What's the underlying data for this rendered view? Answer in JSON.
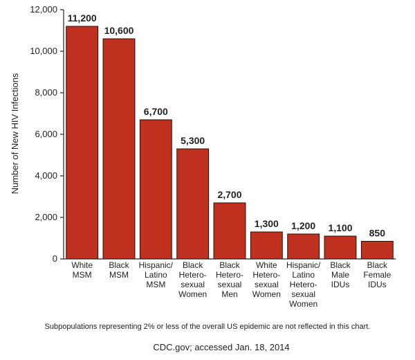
{
  "chart_data": {
    "type": "bar",
    "ylabel": "Number of New HIV Infections",
    "ylim": [
      0,
      12000
    ],
    "yticks": [
      0,
      2000,
      4000,
      6000,
      8000,
      10000,
      12000
    ],
    "ytick_labels": [
      "0",
      "2,000",
      "4,000",
      "6,000",
      "8,000",
      "10,000",
      "12,000"
    ],
    "grid": false,
    "categories": [
      [
        "White",
        "MSM"
      ],
      [
        "Black",
        "MSM"
      ],
      [
        "Hispanic/",
        "Latino",
        "MSM"
      ],
      [
        "Black",
        "Hetero-",
        "sexual",
        "Women"
      ],
      [
        "Black",
        "Hetero-",
        "sexual",
        "Men"
      ],
      [
        "White",
        "Hetero-",
        "sexual",
        "Women"
      ],
      [
        "Hispanic/",
        "Latino",
        "Hetero-",
        "sexual",
        "Women"
      ],
      [
        "Black",
        "Male",
        "IDUs"
      ],
      [
        "Black",
        "Female",
        "IDUs"
      ]
    ],
    "values": [
      11200,
      10600,
      6700,
      5300,
      2700,
      1300,
      1200,
      1100,
      850
    ],
    "value_labels": [
      "11,200",
      "10,600",
      "6,700",
      "5,300",
      "2,700",
      "1,300",
      "1,200",
      "1,100",
      "850"
    ],
    "bar_color": "#C0301E",
    "bar_edge_color": "#2a0d08"
  },
  "footnote": "Subpopulations representing 2% or less of the overall US epidemic are not reflected in this chart.",
  "source": "CDC.gov; accessed Jan. 18, 2014"
}
